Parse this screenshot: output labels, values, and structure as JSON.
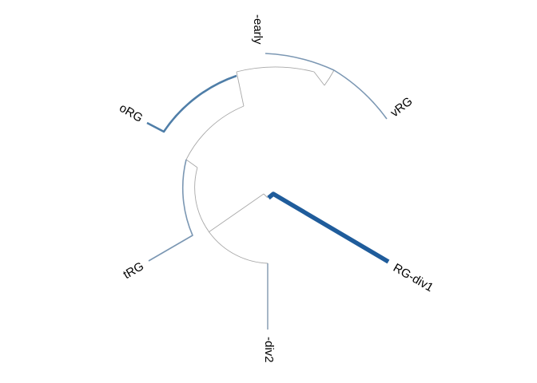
{
  "tree": {
    "tips": [
      {
        "id": "early",
        "label": "-early"
      },
      {
        "id": "vrg",
        "label": "vRG"
      },
      {
        "id": "org",
        "label": "oRG"
      },
      {
        "id": "trg",
        "label": "tRG"
      },
      {
        "id": "div2",
        "label": "-div2"
      },
      {
        "id": "div1",
        "label": "RG-div1"
      }
    ],
    "colors": {
      "internal": "#a8a8a8",
      "early": "#7b97b3",
      "vrg": "#7b97b3",
      "org": "#4f7ea8",
      "trg": "#7b97b3",
      "div2": "#7f96ad",
      "div1": "#1f5c9b"
    }
  }
}
